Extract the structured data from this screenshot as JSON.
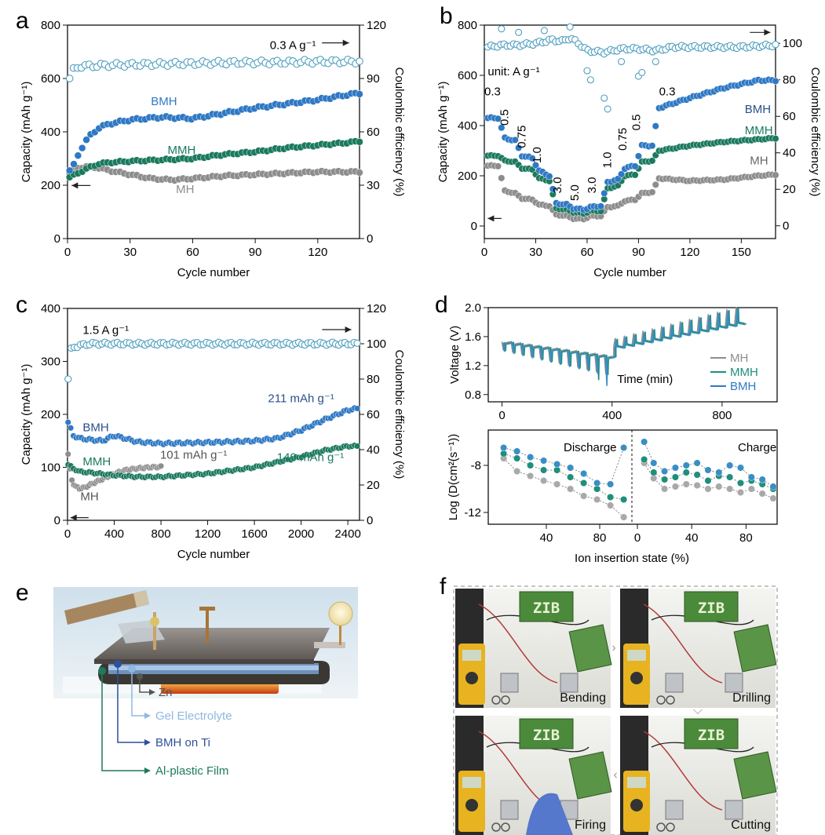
{
  "panels": {
    "a": {
      "letter": "a"
    },
    "b": {
      "letter": "b"
    },
    "c": {
      "letter": "c"
    },
    "d": {
      "letter": "d"
    },
    "e": {
      "letter": "e"
    },
    "f": {
      "letter": "f"
    }
  },
  "colors": {
    "BMH": "#2f79c4",
    "MMH": "#1c7a5e",
    "MH": "#8d8d8d",
    "CE": "#4f9fbf"
  },
  "chart_data": [
    {
      "id": "a",
      "type": "scatter",
      "xlabel": "Cycle number",
      "ylabel": "Capacity (mAh g⁻¹)",
      "ylabel_right": "Coulombic efficiency (%)",
      "xlim": [
        0,
        140
      ],
      "ylim": [
        0,
        800
      ],
      "ylim_right": [
        0,
        120
      ],
      "x_ticks": [
        0,
        30,
        60,
        90,
        120
      ],
      "y_ticks": [
        0,
        200,
        400,
        600,
        800
      ],
      "y_ticks_right": [
        0,
        30,
        60,
        90,
        120
      ],
      "annotation": "0.3 A g⁻¹",
      "series": [
        {
          "name": "BMH",
          "x": [
            1,
            3,
            6,
            10,
            15,
            20,
            30,
            45,
            60,
            75,
            90,
            105,
            120,
            135,
            140
          ],
          "values": [
            255,
            275,
            330,
            380,
            415,
            430,
            445,
            455,
            450,
            470,
            490,
            505,
            520,
            540,
            545
          ]
        },
        {
          "name": "MMH",
          "x": [
            1,
            5,
            10,
            15,
            20,
            30,
            45,
            60,
            75,
            90,
            105,
            120,
            135,
            140
          ],
          "values": [
            230,
            245,
            265,
            280,
            285,
            290,
            295,
            300,
            315,
            325,
            340,
            350,
            360,
            365
          ]
        },
        {
          "name": "MH",
          "x": [
            1,
            5,
            10,
            15,
            20,
            30,
            40,
            50,
            60,
            75,
            90,
            105,
            120,
            135,
            140
          ],
          "values": [
            245,
            265,
            270,
            265,
            255,
            240,
            225,
            220,
            225,
            235,
            240,
            245,
            250,
            250,
            250
          ]
        },
        {
          "name": "CE",
          "x": [
            1,
            3,
            6,
            10,
            20,
            40,
            60,
            80,
            100,
            120,
            140
          ],
          "values": [
            90,
            95,
            97,
            97,
            97.5,
            98,
            98.5,
            99,
            99,
            99.5,
            99.5
          ]
        }
      ],
      "labels": [
        "BMH",
        "MMH",
        "MH"
      ]
    },
    {
      "id": "b",
      "type": "scatter",
      "xlabel": "Cycle number",
      "ylabel": "Capacity (mAh g⁻¹)",
      "ylabel_right": "Coulombic efficiency (%)",
      "xlim": [
        0,
        170
      ],
      "ylim": [
        -50,
        800
      ],
      "ylim_right": [
        -7,
        110
      ],
      "x_ticks": [
        0,
        30,
        60,
        90,
        120,
        150
      ],
      "y_ticks": [
        0,
        200,
        400,
        600,
        800
      ],
      "y_ticks_right": [
        0,
        20,
        40,
        60,
        80,
        100
      ],
      "unit_label": "unit:  A g⁻¹",
      "rates": [
        "0.3",
        "0.5",
        "0.75",
        "1.0",
        "3.0",
        "5.0",
        "3.0",
        "1.0",
        "0.75",
        "0.5",
        "0.3"
      ],
      "series": [
        {
          "name": "BMH",
          "x": [
            2,
            8,
            12,
            18,
            22,
            28,
            32,
            38,
            42,
            48,
            52,
            58,
            62,
            68,
            72,
            78,
            82,
            88,
            92,
            98,
            102,
            120,
            140,
            160,
            170
          ],
          "values": [
            430,
            430,
            350,
            340,
            280,
            270,
            220,
            200,
            90,
            85,
            70,
            65,
            75,
            80,
            175,
            185,
            230,
            240,
            320,
            320,
            470,
            510,
            550,
            580,
            580
          ]
        },
        {
          "name": "MMH",
          "x": [
            2,
            8,
            12,
            18,
            22,
            28,
            32,
            38,
            42,
            48,
            52,
            58,
            62,
            68,
            72,
            78,
            82,
            88,
            92,
            98,
            102,
            120,
            140,
            160,
            170
          ],
          "values": [
            280,
            280,
            260,
            255,
            230,
            225,
            190,
            180,
            70,
            65,
            55,
            50,
            60,
            60,
            150,
            160,
            200,
            205,
            255,
            260,
            300,
            320,
            335,
            345,
            350
          ]
        },
        {
          "name": "MH",
          "x": [
            2,
            8,
            12,
            18,
            22,
            28,
            32,
            38,
            42,
            48,
            52,
            58,
            62,
            68,
            72,
            78,
            82,
            88,
            92,
            98,
            102,
            120,
            140,
            160,
            170
          ],
          "values": [
            240,
            240,
            140,
            130,
            110,
            105,
            85,
            80,
            45,
            40,
            30,
            28,
            40,
            40,
            75,
            80,
            100,
            105,
            130,
            135,
            190,
            180,
            185,
            200,
            205
          ]
        },
        {
          "name": "CE",
          "x": [
            2,
            10,
            20,
            30,
            40,
            45,
            50,
            55,
            60,
            70,
            80,
            90,
            100,
            110,
            130,
            150,
            170
          ],
          "values": [
            98,
            99,
            99,
            100,
            102,
            101,
            103,
            100,
            96,
            95,
            97,
            97,
            96,
            98,
            98,
            98,
            99
          ]
        }
      ],
      "labels": [
        "BMH",
        "MMH",
        "MH",
        "0.3"
      ]
    },
    {
      "id": "c",
      "type": "scatter",
      "xlabel": "Cycle number",
      "ylabel": "Capacity (mAh g⁻¹)",
      "ylabel_right": "Coulombic efficiency (%)",
      "xlim": [
        0,
        2500
      ],
      "ylim": [
        0,
        400
      ],
      "ylim_right": [
        0,
        120
      ],
      "x_ticks": [
        0,
        400,
        800,
        1200,
        1600,
        2000,
        2400
      ],
      "y_ticks": [
        0,
        100,
        200,
        300,
        400
      ],
      "y_ticks_right": [
        0,
        20,
        40,
        60,
        80,
        100,
        120
      ],
      "annotation": "1.5 A g⁻¹",
      "series": [
        {
          "name": "BMH",
          "x": [
            5,
            50,
            100,
            200,
            300,
            400,
            600,
            800,
            1200,
            1600,
            1800,
            2000,
            2200,
            2400,
            2480
          ],
          "values": [
            185,
            160,
            155,
            152,
            150,
            160,
            148,
            145,
            147,
            150,
            155,
            170,
            190,
            208,
            211
          ]
        },
        {
          "name": "MMH",
          "x": [
            5,
            50,
            100,
            200,
            400,
            600,
            800,
            1200,
            1600,
            2000,
            2200,
            2400,
            2480
          ],
          "values": [
            105,
            98,
            92,
            90,
            85,
            82,
            82,
            88,
            100,
            120,
            132,
            140,
            140
          ]
        },
        {
          "name": "MH",
          "x": [
            5,
            30,
            60,
            100,
            150,
            200,
            300,
            400,
            500,
            600,
            700,
            800
          ],
          "values": [
            125,
            80,
            65,
            60,
            62,
            68,
            78,
            88,
            95,
            98,
            100,
            101
          ]
        },
        {
          "name": "CE",
          "x": [
            5,
            20,
            50,
            100,
            200,
            400,
            800,
            1200,
            1600,
            2000,
            2400,
            2480
          ],
          "values": [
            80,
            96,
            98,
            99,
            100,
            100,
            100,
            100,
            100,
            100,
            100,
            100
          ]
        }
      ],
      "labels": [
        "BMH",
        "MMH",
        "MH",
        "211 mAh g⁻¹",
        "101 mAh g⁻¹",
        "140 mAh g⁻¹"
      ]
    },
    {
      "id": "d",
      "type": "line",
      "top": {
        "xlabel": "Time (min)",
        "ylabel": "Voltage (V)",
        "xlim": [
          -50,
          1000
        ],
        "ylim": [
          0.7,
          2.0
        ],
        "x_ticks": [
          0,
          400,
          800
        ],
        "y_ticks": [
          0.8,
          1.2,
          1.6,
          2.0
        ],
        "legend": [
          "MH",
          "MMH",
          "BMH"
        ]
      },
      "bottom": {
        "xlabel": "Ion insertion state (%)",
        "ylabel": "Log (D(cm²(s⁻¹))",
        "ylim": [
          -13,
          -5
        ],
        "y_ticks": [
          -8,
          -12
        ],
        "x_ticks_discharge": [
          40,
          80
        ],
        "x_ticks_charge": [
          0,
          40,
          80
        ],
        "discharge_label": "Discharge",
        "charge_label": "Charge",
        "discharge": {
          "x": [
            8,
            18,
            28,
            38,
            48,
            58,
            68,
            78,
            88,
            98
          ],
          "BMH": [
            -6.5,
            -6.8,
            -7.3,
            -7.6,
            -7.9,
            -8.2,
            -8.7,
            -9.5,
            -9.6,
            -6.5
          ],
          "MMH": [
            -7,
            -7.4,
            -8.0,
            -8.4,
            -8.4,
            -9.0,
            -9.5,
            -10.0,
            -10.7,
            -10.9
          ],
          "MH": [
            -7.4,
            -8.5,
            -8.9,
            -9.3,
            -9.6,
            -10.0,
            -10.6,
            -10.9,
            -11.4,
            -12.4
          ]
        },
        "charge": {
          "x": [
            5,
            12,
            20,
            28,
            36,
            44,
            52,
            60,
            68,
            76,
            84,
            92,
            100
          ],
          "BMH": [
            -6,
            -7.8,
            -8.5,
            -8.2,
            -8.0,
            -7.8,
            -8.4,
            -8.6,
            -8.0,
            -8.2,
            -9.0,
            -9.2,
            -9.8
          ],
          "MMH": [
            -7.5,
            -8.6,
            -9.2,
            -9.0,
            -8.6,
            -8.8,
            -9.3,
            -8.9,
            -9.0,
            -9.5,
            -9.3,
            -9.6,
            -10.0
          ],
          "MH": [
            -7.8,
            -9.1,
            -10.0,
            -9.8,
            -9.6,
            -9.7,
            -10.0,
            -9.8,
            -10.0,
            -10.3,
            -10.0,
            -10.4,
            -10.8
          ]
        }
      }
    }
  ],
  "schematic_e": {
    "labels": [
      "Zn",
      "Gel Electrolyte",
      "BMH on Ti",
      "Al-plastic Film"
    ],
    "label_colors": [
      "#555555",
      "#8fb8e0",
      "#2f4f9a",
      "#1c7a5e"
    ]
  },
  "photos_f": {
    "sign_text": "ZIB",
    "labels": [
      "Bending",
      "Drilling",
      "Firing",
      "Cutting"
    ]
  }
}
